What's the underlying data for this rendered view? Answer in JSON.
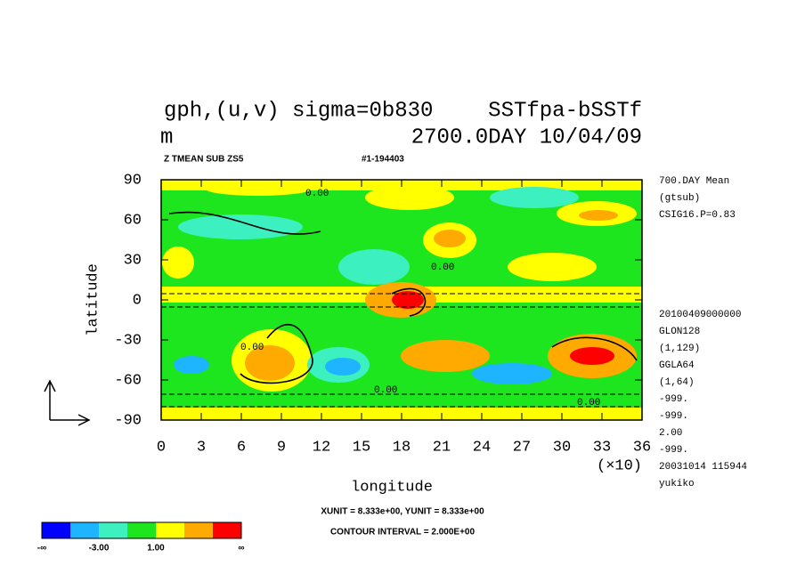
{
  "chart_data": {
    "type": "contour",
    "title_left": "gph,(u,v) sigma=0b830",
    "title_right": "SSTfpa-bSSTf",
    "subtitle_left": "m",
    "subtitle_right": "2700.0DAY 10/04/09",
    "header_left": "Z TMEAN SUB ZS5",
    "header_right": "#1-194403",
    "x_label": "longitude",
    "y_label": "latitude",
    "x_multiplier": "(×10)",
    "xlim": [
      0,
      36
    ],
    "xticks": [
      0,
      3,
      6,
      9,
      12,
      15,
      18,
      21,
      24,
      27,
      30,
      33,
      36
    ],
    "ylim": [
      -90,
      90
    ],
    "yticks": [
      -90,
      -60,
      -30,
      0,
      30,
      60,
      90
    ],
    "info_top": [
      "700.DAY Mean",
      "(gtsub)",
      "CSIG16.P=0.83"
    ],
    "info_bottom": [
      "20100409000000",
      "GLON128",
      "(1,129)",
      "GGLA64",
      "(1,64)",
      "-999.",
      "-999.",
      "2.00",
      "-999.",
      "20031014 115944",
      "yukiko"
    ],
    "vector_units": "XUNIT = 8.333e+00, YUNIT = 8.333e+00",
    "contour_interval": "CONTOUR INTERVAL = 2.000E+00",
    "contour_labels": [
      "0.00",
      "0.00",
      "0.00",
      "0.00",
      "0.00"
    ],
    "colorbar": {
      "colors": [
        "#0000ff",
        "#1eb4ff",
        "#3cf0c0",
        "#1ee61e",
        "#ffff00",
        "#ffaa00",
        "#ff0000"
      ],
      "labels": [
        "-∞",
        "-3.00",
        "1.00",
        "∞"
      ]
    }
  }
}
